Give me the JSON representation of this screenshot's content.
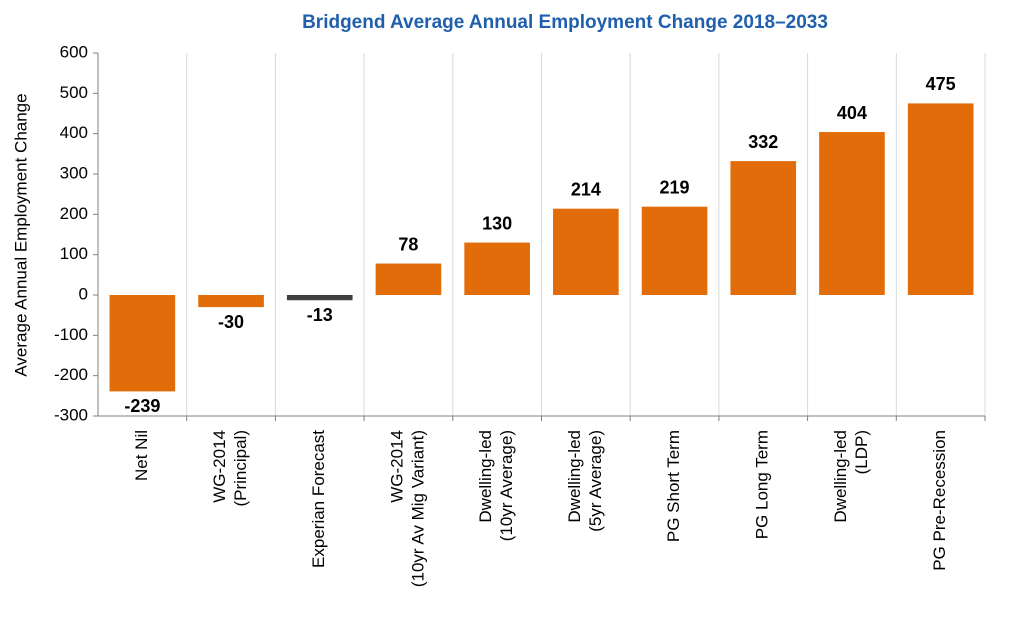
{
  "chart_data": {
    "type": "bar",
    "title": "Bridgend Average Annual Employment Change 2018–2033",
    "y_label": "Average Annual Employment Change",
    "categories": [
      [
        "Net Nil"
      ],
      [
        "WG-2014",
        "(Principal)"
      ],
      [
        "Experian Forecast"
      ],
      [
        "WG-2014",
        "(10yr Av Mig Variant)"
      ],
      [
        "Dwelling-led",
        "(10yr Average)"
      ],
      [
        "Dwelling-led",
        "(5yr Average)"
      ],
      [
        "PG Short Term"
      ],
      [
        "PG Long Term"
      ],
      [
        "Dwelling-led",
        "(LDP)"
      ],
      [
        "PG Pre-Recession"
      ]
    ],
    "values": [
      -239,
      -30,
      -13,
      78,
      130,
      214,
      219,
      332,
      404,
      475
    ],
    "colors": [
      "#e36c0a",
      "#e36c0a",
      "#404040",
      "#e36c0a",
      "#e36c0a",
      "#e36c0a",
      "#e36c0a",
      "#e36c0a",
      "#e36c0a",
      "#e36c0a"
    ],
    "ylim": [
      -300,
      600
    ],
    "yticks": [
      -300,
      -200,
      -100,
      0,
      100,
      200,
      300,
      400,
      500,
      600
    ],
    "vertical_grid": true
  }
}
